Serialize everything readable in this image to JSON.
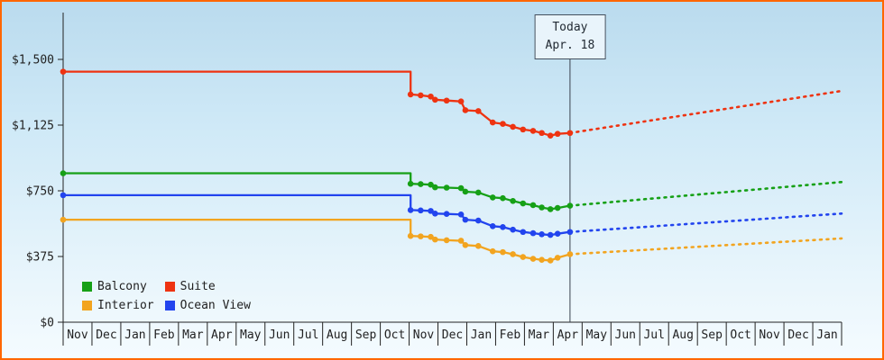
{
  "frame": {
    "border_color": "#ff6600",
    "axis_color": "#222222",
    "today_line_color": "#39424e",
    "text_color": "#222222"
  },
  "chart_data": {
    "type": "line",
    "title": "",
    "xlabel": "",
    "ylabel": "",
    "ylim": [
      0,
      1500
    ],
    "grid": false,
    "legend_position": "bottom-left",
    "y_ticks": [
      {
        "value": 0,
        "label": "$0"
      },
      {
        "value": 375,
        "label": "$375"
      },
      {
        "value": 750,
        "label": "$750"
      },
      {
        "value": 1125,
        "label": "$1,125"
      },
      {
        "value": 1500,
        "label": "$1,500"
      }
    ],
    "x_months": [
      "Nov",
      "Dec",
      "Jan",
      "Feb",
      "Mar",
      "Apr",
      "May",
      "Jun",
      "Jul",
      "Aug",
      "Sep",
      "Oct",
      "Nov",
      "Dec",
      "Jan",
      "Feb",
      "Mar",
      "Apr",
      "May",
      "Jun",
      "Jul",
      "Aug",
      "Sep",
      "Oct",
      "Nov",
      "Dec",
      "Jan"
    ],
    "today": {
      "label_line1": "Today",
      "label_line2": "Apr. 18",
      "x": 17.58
    },
    "series": [
      {
        "name": "Balcony",
        "color": "#16a016",
        "style_history": "solid",
        "style_projection": "dotted",
        "history": [
          [
            0,
            850
          ],
          [
            12.05,
            850
          ],
          [
            12.05,
            790
          ],
          [
            12.4,
            788
          ],
          [
            12.75,
            785
          ],
          [
            12.9,
            770
          ],
          [
            13.3,
            768
          ],
          [
            13.8,
            765
          ],
          [
            13.95,
            745
          ],
          [
            14.4,
            740
          ],
          [
            14.9,
            712
          ],
          [
            15.25,
            708
          ],
          [
            15.6,
            692
          ],
          [
            15.95,
            678
          ],
          [
            16.3,
            668
          ],
          [
            16.6,
            655
          ],
          [
            16.9,
            645
          ],
          [
            17.15,
            652
          ],
          [
            17.58,
            665
          ]
        ],
        "projection": [
          [
            17.58,
            665
          ],
          [
            27,
            800
          ]
        ]
      },
      {
        "name": "Suite",
        "color": "#ee3311",
        "style_history": "solid",
        "style_projection": "dotted",
        "history": [
          [
            0,
            1430
          ],
          [
            12.05,
            1430
          ],
          [
            12.05,
            1300
          ],
          [
            12.4,
            1295
          ],
          [
            12.75,
            1288
          ],
          [
            12.9,
            1270
          ],
          [
            13.3,
            1265
          ],
          [
            13.8,
            1260
          ],
          [
            13.95,
            1210
          ],
          [
            14.4,
            1205
          ],
          [
            14.9,
            1140
          ],
          [
            15.25,
            1132
          ],
          [
            15.6,
            1115
          ],
          [
            15.95,
            1100
          ],
          [
            16.3,
            1092
          ],
          [
            16.6,
            1080
          ],
          [
            16.9,
            1065
          ],
          [
            17.15,
            1075
          ],
          [
            17.58,
            1080
          ]
        ],
        "projection": [
          [
            17.58,
            1080
          ],
          [
            27,
            1320
          ]
        ]
      },
      {
        "name": "Interior",
        "color": "#f2a41f",
        "style_history": "solid",
        "style_projection": "dotted",
        "history": [
          [
            0,
            585
          ],
          [
            12.05,
            585
          ],
          [
            12.05,
            492
          ],
          [
            12.4,
            490
          ],
          [
            12.75,
            487
          ],
          [
            12.9,
            472
          ],
          [
            13.3,
            468
          ],
          [
            13.8,
            465
          ],
          [
            13.95,
            440
          ],
          [
            14.4,
            435
          ],
          [
            14.9,
            405
          ],
          [
            15.25,
            400
          ],
          [
            15.6,
            388
          ],
          [
            15.95,
            372
          ],
          [
            16.3,
            362
          ],
          [
            16.6,
            356
          ],
          [
            16.9,
            352
          ],
          [
            17.15,
            368
          ],
          [
            17.58,
            388
          ]
        ],
        "projection": [
          [
            17.58,
            388
          ],
          [
            27,
            478
          ]
        ]
      },
      {
        "name": "Ocean View",
        "color": "#2244ee",
        "style_history": "solid",
        "style_projection": "dotted",
        "history": [
          [
            0,
            725
          ],
          [
            12.05,
            725
          ],
          [
            12.05,
            640
          ],
          [
            12.4,
            638
          ],
          [
            12.75,
            635
          ],
          [
            12.9,
            620
          ],
          [
            13.3,
            618
          ],
          [
            13.8,
            615
          ],
          [
            13.95,
            585
          ],
          [
            14.4,
            580
          ],
          [
            14.9,
            548
          ],
          [
            15.25,
            543
          ],
          [
            15.6,
            528
          ],
          [
            15.95,
            515
          ],
          [
            16.3,
            508
          ],
          [
            16.6,
            502
          ],
          [
            16.9,
            498
          ],
          [
            17.15,
            505
          ],
          [
            17.58,
            515
          ]
        ],
        "projection": [
          [
            17.58,
            515
          ],
          [
            27,
            620
          ]
        ]
      }
    ]
  }
}
